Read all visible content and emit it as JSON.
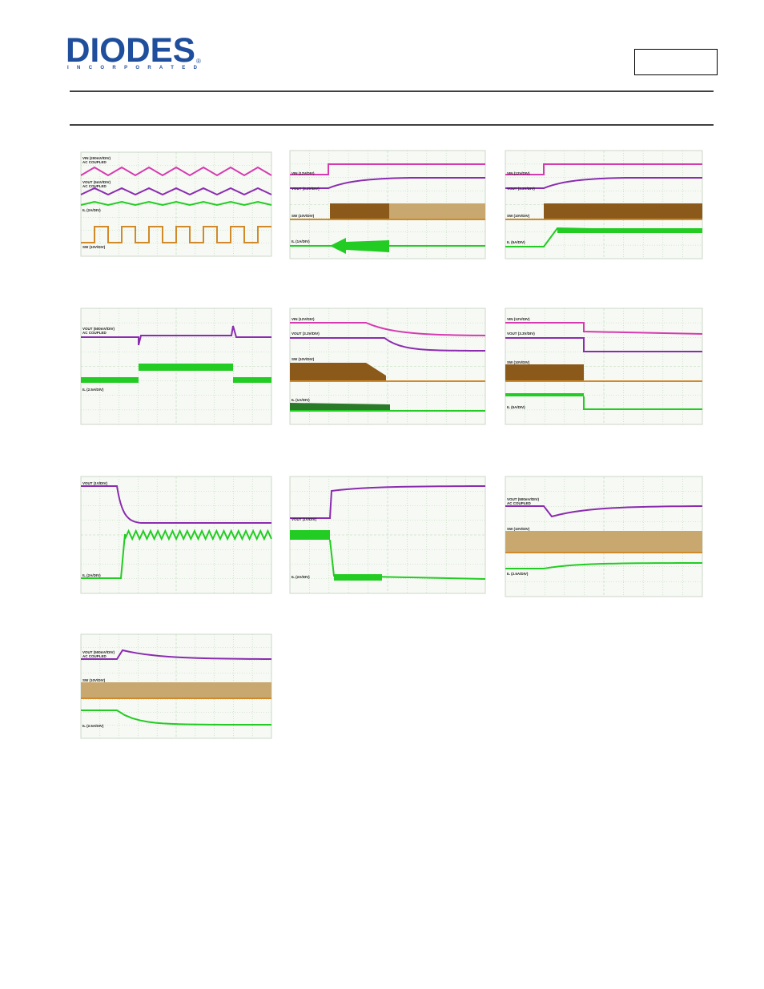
{
  "header": {
    "logo": "DIODES",
    "registered": "®",
    "subtitle": "I N C O R P O R A T E D"
  },
  "scopes": [
    {
      "labels": [
        "VIN (200mV/DIV)",
        "AC COUPLED",
        "VOUT (5mV/DIV)",
        "AC COUPLED",
        "IL (2A/DIV)",
        "SW (10V/DIV)"
      ]
    },
    {
      "labels": [
        "VIN (12V/DIV)",
        "VOUT (3.3V/DIV)",
        "SW (10V/DIV)",
        "IL (1A/DIV)"
      ]
    },
    {
      "labels": [
        "VIN (12V/DIV)",
        "VOUT (3.3V/DIV)",
        "SW (10V/DIV)",
        "IL (5A/DIV)"
      ]
    },
    {
      "labels": [
        "VOUT (500mV/DIV)",
        "AC COUPLED",
        "IL (2.5A/DIV)"
      ]
    },
    {
      "labels": [
        "VIN (12V/DIV)",
        "VOUT (3.3V/DIV)",
        "SW (10V/DIV)",
        "IL (1A/DIV)"
      ]
    },
    {
      "labels": [
        "VIN (12V/DIV)",
        "VOUT (3.3V/DIV)",
        "SW (10V/DIV)",
        "IL (5A/DIV)"
      ]
    },
    {
      "labels": [
        "VOUT (1V/DIV)",
        "IL (2A/DIV)"
      ]
    },
    {
      "labels": [
        "VOUT (1V/DIV)",
        "IL (2A/DIV)"
      ]
    },
    {
      "labels": [
        "VOUT (500mV/DIV)",
        "AC COUPLED",
        "SW (10V/DIV)",
        "IL (2.5A/DIV)"
      ]
    },
    {
      "labels": [
        "VOUT (500mV/DIV)",
        "AC COUPLED",
        "SW (10V/DIV)",
        "IL (2.5A/DIV)"
      ]
    }
  ]
}
